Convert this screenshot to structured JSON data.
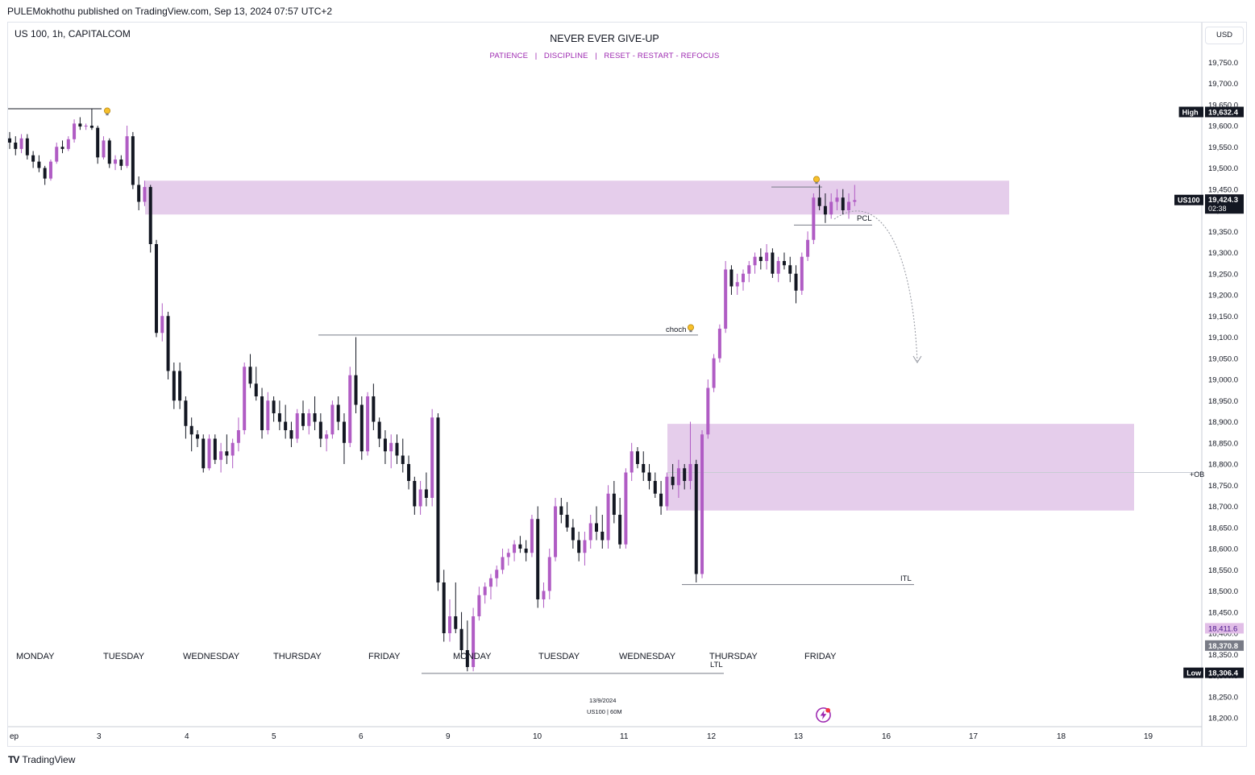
{
  "publish_line": "PULEMokhothu published on TradingView.com, Sep 13, 2024 07:57 UTC+2",
  "symbol_label": "US 100, 1h, CAPITALCOM",
  "note_title": "NEVER EVER GIVE-UP",
  "note_subtitle": "PATIENCE   |   DISCIPLINE   |   RESET - RESTART - REFOCUS",
  "currency_button": "USD",
  "footer_brand": "TradingView",
  "colors": {
    "bull_candle": "#b05cc4",
    "bear_candle": "#131722",
    "zone_fill": "#e5cdeb",
    "accent": "#9c27b0",
    "price_tag": "#131722"
  },
  "chart_data": {
    "type": "candlestick",
    "symbol": "US100",
    "timeframe": "1h",
    "y_axis": {
      "ticks": [
        "18,200.0",
        "18,250.0",
        "18,300.0",
        "18,350.0",
        "18,400.0",
        "18,450.0",
        "18,500.0",
        "18,550.0",
        "18,600.0",
        "18,650.0",
        "18,700.0",
        "18,750.0",
        "18,800.0",
        "18,850.0",
        "18,900.0",
        "18,950.0",
        "19,000.0",
        "19,050.0",
        "19,100.0",
        "19,150.0",
        "19,200.0",
        "19,250.0",
        "19,300.0",
        "19,350.0",
        "19,400.0",
        "19,450.0",
        "19,500.0",
        "19,550.0",
        "19,600.0",
        "19,650.0",
        "19,700.0",
        "19,750.0"
      ],
      "range": [
        18180,
        19810
      ]
    },
    "x_axis": {
      "labels": [
        "ep",
        "3",
        "4",
        "5",
        "6",
        "9",
        "10",
        "11",
        "12",
        "13",
        "16",
        "17",
        "18",
        "19"
      ]
    },
    "day_labels": [
      "MONDAY",
      "TUESDAY",
      "WEDNESDAY",
      "THURSDAY",
      "FRIDAY",
      "MONDAY",
      "TUESDAY",
      "WEDNESDAY",
      "THURSDAY",
      "FRIDAY"
    ],
    "price_tags": [
      {
        "label": "High",
        "value": "19,632.4",
        "price": 19632.4
      },
      {
        "label": "US100",
        "value": "19,424.3",
        "sub": "02:38",
        "price": 19424.3
      },
      {
        "label": "",
        "value": "18,411.6",
        "price": 18411.6
      },
      {
        "label": "",
        "value": "18,370.8",
        "price": 18370.8
      },
      {
        "label": "Low",
        "value": "18,306.4",
        "price": 18306.4
      }
    ],
    "zones": [
      {
        "name": "supply-zone",
        "top": 19470,
        "bottom": 19390
      },
      {
        "name": "demand-zone",
        "top": 18895,
        "bottom": 18690
      }
    ],
    "annotations": {
      "choch": "choch",
      "pcl": "PCL",
      "itl": "ITL",
      "ltl": "LTL",
      "ob_label": "+OB",
      "date_stamp": "13/9/2024",
      "stamp_symbol": "US100 | 60M"
    },
    "key_levels": {
      "early_high": 19640,
      "choch_level": 19105,
      "pcl_level": 19365,
      "itl_level": 18515,
      "ltl_level": 18305,
      "ob_mid": 18780
    },
    "series": [
      {
        "values": [
          [
            19570,
            19585,
            19545,
            19560
          ],
          [
            19560,
            19575,
            19530,
            19545
          ],
          [
            19545,
            19580,
            19535,
            19570
          ],
          [
            19570,
            19580,
            19520,
            19530
          ],
          [
            19530,
            19540,
            19500,
            19515
          ],
          [
            19515,
            19530,
            19490,
            19500
          ],
          [
            19500,
            19505,
            19460,
            19475
          ],
          [
            19475,
            19520,
            19470,
            19515
          ],
          [
            19515,
            19560,
            19510,
            19550
          ],
          [
            19550,
            19565,
            19535,
            19545
          ],
          [
            19545,
            19575,
            19540,
            19568
          ],
          [
            19568,
            19615,
            19560,
            19605
          ],
          [
            19605,
            19620,
            19590,
            19598
          ],
          [
            19598,
            19605,
            19590,
            19600
          ],
          [
            19600,
            19640,
            19590,
            19595
          ],
          [
            19595,
            19600,
            19510,
            19525
          ],
          [
            19525,
            19575,
            19520,
            19565
          ],
          [
            19565,
            19570,
            19500,
            19510
          ],
          [
            19510,
            19530,
            19495,
            19520
          ],
          [
            19520,
            19530,
            19495,
            19505
          ],
          [
            19505,
            19600,
            19500,
            19575
          ],
          [
            19575,
            19585,
            19450,
            19460
          ],
          [
            19460,
            19480,
            19400,
            19420
          ],
          [
            19420,
            19470,
            19410,
            19455
          ],
          [
            19455,
            19460,
            19300,
            19320
          ],
          [
            19320,
            19330,
            19100,
            19110
          ],
          [
            19110,
            19180,
            19090,
            19150
          ],
          [
            19150,
            19160,
            19000,
            19020
          ],
          [
            19020,
            19040,
            18930,
            18950
          ],
          [
            19020,
            19040,
            18930,
            18950
          ],
          [
            18950,
            18960,
            18860,
            18890
          ],
          [
            18890,
            18910,
            18830,
            18870
          ],
          [
            18870,
            18880,
            18840,
            18860
          ],
          [
            18860,
            18870,
            18780,
            18790
          ],
          [
            18790,
            18870,
            18785,
            18860
          ],
          [
            18860,
            18870,
            18800,
            18810
          ],
          [
            18810,
            18850,
            18780,
            18830
          ],
          [
            18830,
            18870,
            18800,
            18820
          ],
          [
            18820,
            18860,
            18790,
            18850
          ],
          [
            18850,
            18910,
            18830,
            18880
          ],
          [
            18880,
            19040,
            18870,
            19030
          ],
          [
            19030,
            19060,
            18980,
            18990
          ],
          [
            18990,
            19030,
            18950,
            18960
          ],
          [
            18960,
            18980,
            18860,
            18880
          ],
          [
            18880,
            18970,
            18870,
            18950
          ],
          [
            18950,
            18960,
            18900,
            18920
          ],
          [
            18920,
            18950,
            18880,
            18900
          ],
          [
            18900,
            18940,
            18860,
            18880
          ],
          [
            18880,
            18900,
            18840,
            18860
          ],
          [
            18860,
            18930,
            18850,
            18920
          ],
          [
            18920,
            18950,
            18880,
            18890
          ],
          [
            18890,
            18930,
            18870,
            18920
          ],
          [
            18920,
            18960,
            18880,
            18900
          ],
          [
            18900,
            18920,
            18840,
            18860
          ],
          [
            18860,
            18880,
            18830,
            18870
          ],
          [
            18870,
            18950,
            18860,
            18940
          ],
          [
            18940,
            18960,
            18880,
            18900
          ],
          [
            18900,
            18920,
            18800,
            18850
          ],
          [
            18850,
            19030,
            18840,
            19010
          ],
          [
            19010,
            19100,
            18920,
            18940
          ],
          [
            18940,
            18960,
            18810,
            18830
          ],
          [
            18830,
            18970,
            18820,
            18960
          ],
          [
            18960,
            18990,
            18880,
            18900
          ],
          [
            18900,
            18910,
            18840,
            18860
          ],
          [
            18860,
            18880,
            18800,
            18830
          ],
          [
            18830,
            18870,
            18790,
            18850
          ],
          [
            18850,
            18870,
            18800,
            18820
          ],
          [
            18820,
            18860,
            18780,
            18800
          ],
          [
            18800,
            18820,
            18740,
            18760
          ],
          [
            18760,
            18770,
            18680,
            18700
          ],
          [
            18700,
            18760,
            18680,
            18740
          ],
          [
            18740,
            18780,
            18700,
            18720
          ],
          [
            18720,
            18930,
            18700,
            18910
          ],
          [
            18910,
            18920,
            18500,
            18520
          ],
          [
            18520,
            18550,
            18380,
            18400
          ],
          [
            18400,
            18480,
            18380,
            18440
          ],
          [
            18440,
            18520,
            18400,
            18410
          ],
          [
            18410,
            18450,
            18340,
            18360
          ],
          [
            18360,
            18430,
            18310,
            18320
          ],
          [
            18320,
            18460,
            18310,
            18440
          ],
          [
            18440,
            18510,
            18430,
            18490
          ],
          [
            18490,
            18520,
            18470,
            18510
          ],
          [
            18510,
            18540,
            18480,
            18530
          ],
          [
            18530,
            18560,
            18510,
            18550
          ],
          [
            18550,
            18600,
            18540,
            18580
          ],
          [
            18580,
            18600,
            18560,
            18590
          ],
          [
            18590,
            18620,
            18570,
            18610
          ],
          [
            18610,
            18630,
            18590,
            18600
          ],
          [
            18600,
            18620,
            18570,
            18590
          ],
          [
            18590,
            18680,
            18580,
            18670
          ],
          [
            18670,
            18700,
            18460,
            18480
          ],
          [
            18480,
            18520,
            18460,
            18500
          ],
          [
            18500,
            18600,
            18480,
            18580
          ],
          [
            18580,
            18720,
            18570,
            18700
          ],
          [
            18700,
            18720,
            18660,
            18680
          ],
          [
            18680,
            18710,
            18640,
            18650
          ],
          [
            18650,
            18670,
            18600,
            18620
          ],
          [
            18620,
            18640,
            18570,
            18590
          ],
          [
            18590,
            18640,
            18560,
            18620
          ],
          [
            18620,
            18680,
            18600,
            18660
          ],
          [
            18660,
            18700,
            18620,
            18640
          ],
          [
            18640,
            18680,
            18600,
            18620
          ],
          [
            18620,
            18750,
            18600,
            18730
          ],
          [
            18730,
            18760,
            18660,
            18680
          ],
          [
            18680,
            18720,
            18600,
            18610
          ],
          [
            18610,
            18790,
            18600,
            18780
          ],
          [
            18780,
            18850,
            18760,
            18830
          ],
          [
            18830,
            18840,
            18790,
            18800
          ],
          [
            18800,
            18830,
            18760,
            18780
          ],
          [
            18780,
            18800,
            18740,
            18760
          ],
          [
            18760,
            18780,
            18720,
            18730
          ],
          [
            18730,
            18760,
            18680,
            18700
          ],
          [
            18700,
            18780,
            18690,
            18770
          ],
          [
            18770,
            18800,
            18740,
            18750
          ],
          [
            18750,
            18810,
            18720,
            18790
          ],
          [
            18790,
            18800,
            18740,
            18760
          ],
          [
            18760,
            18900,
            18740,
            18800
          ],
          [
            18800,
            18810,
            18520,
            18540
          ],
          [
            18540,
            18880,
            18530,
            18870
          ],
          [
            18870,
            19000,
            18860,
            18980
          ],
          [
            18980,
            19060,
            18970,
            19050
          ],
          [
            19050,
            19130,
            19040,
            19120
          ],
          [
            19120,
            19280,
            19110,
            19260
          ],
          [
            19260,
            19270,
            19200,
            19220
          ],
          [
            19220,
            19250,
            19200,
            19230
          ],
          [
            19230,
            19260,
            19210,
            19250
          ],
          [
            19250,
            19280,
            19230,
            19270
          ],
          [
            19270,
            19300,
            19250,
            19290
          ],
          [
            19290,
            19310,
            19260,
            19280
          ],
          [
            19280,
            19320,
            19260,
            19300
          ],
          [
            19300,
            19310,
            19240,
            19250
          ],
          [
            19250,
            19290,
            19230,
            19280
          ],
          [
            19280,
            19300,
            19260,
            19270
          ],
          [
            19270,
            19290,
            19230,
            19250
          ],
          [
            19250,
            19270,
            19180,
            19210
          ],
          [
            19210,
            19300,
            19200,
            19290
          ],
          [
            19290,
            19350,
            19280,
            19330
          ],
          [
            19330,
            19440,
            19320,
            19430
          ],
          [
            19430,
            19460,
            19400,
            19410
          ],
          [
            19410,
            19440,
            19370,
            19390
          ],
          [
            19390,
            19440,
            19380,
            19420
          ],
          [
            19420,
            19450,
            19400,
            19430
          ],
          [
            19430,
            19450,
            19390,
            19400
          ],
          [
            19400,
            19440,
            19380,
            19420
          ],
          [
            19420,
            19460,
            19410,
            19424
          ]
        ]
      }
    ]
  }
}
